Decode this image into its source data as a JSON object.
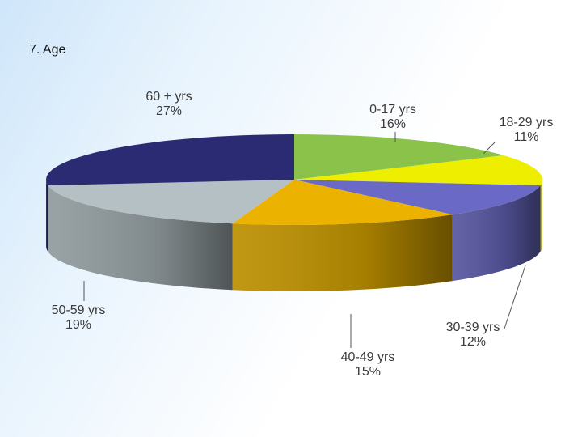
{
  "slide": {
    "title": "7. Age"
  },
  "chart_data": {
    "type": "pie",
    "title": "7. Age",
    "style": "3d-tilted",
    "slices": [
      {
        "label": "0-17 yrs",
        "value": 16,
        "display": "16%",
        "color": "#8bc34a"
      },
      {
        "label": "18-29 yrs",
        "value": 11,
        "display": "11%",
        "color": "#eeee00"
      },
      {
        "label": "30-39 yrs",
        "value": 12,
        "display": "12%",
        "color": "#6a6ac6"
      },
      {
        "label": "40-49 yrs",
        "value": 15,
        "display": "15%",
        "color": "#ebb300"
      },
      {
        "label": "50-59 yrs",
        "value": 19,
        "display": "19%",
        "color": "#b4c0c4"
      },
      {
        "label": "60 + yrs",
        "value": 27,
        "display": "27%",
        "color": "#2a2b72"
      }
    ]
  }
}
